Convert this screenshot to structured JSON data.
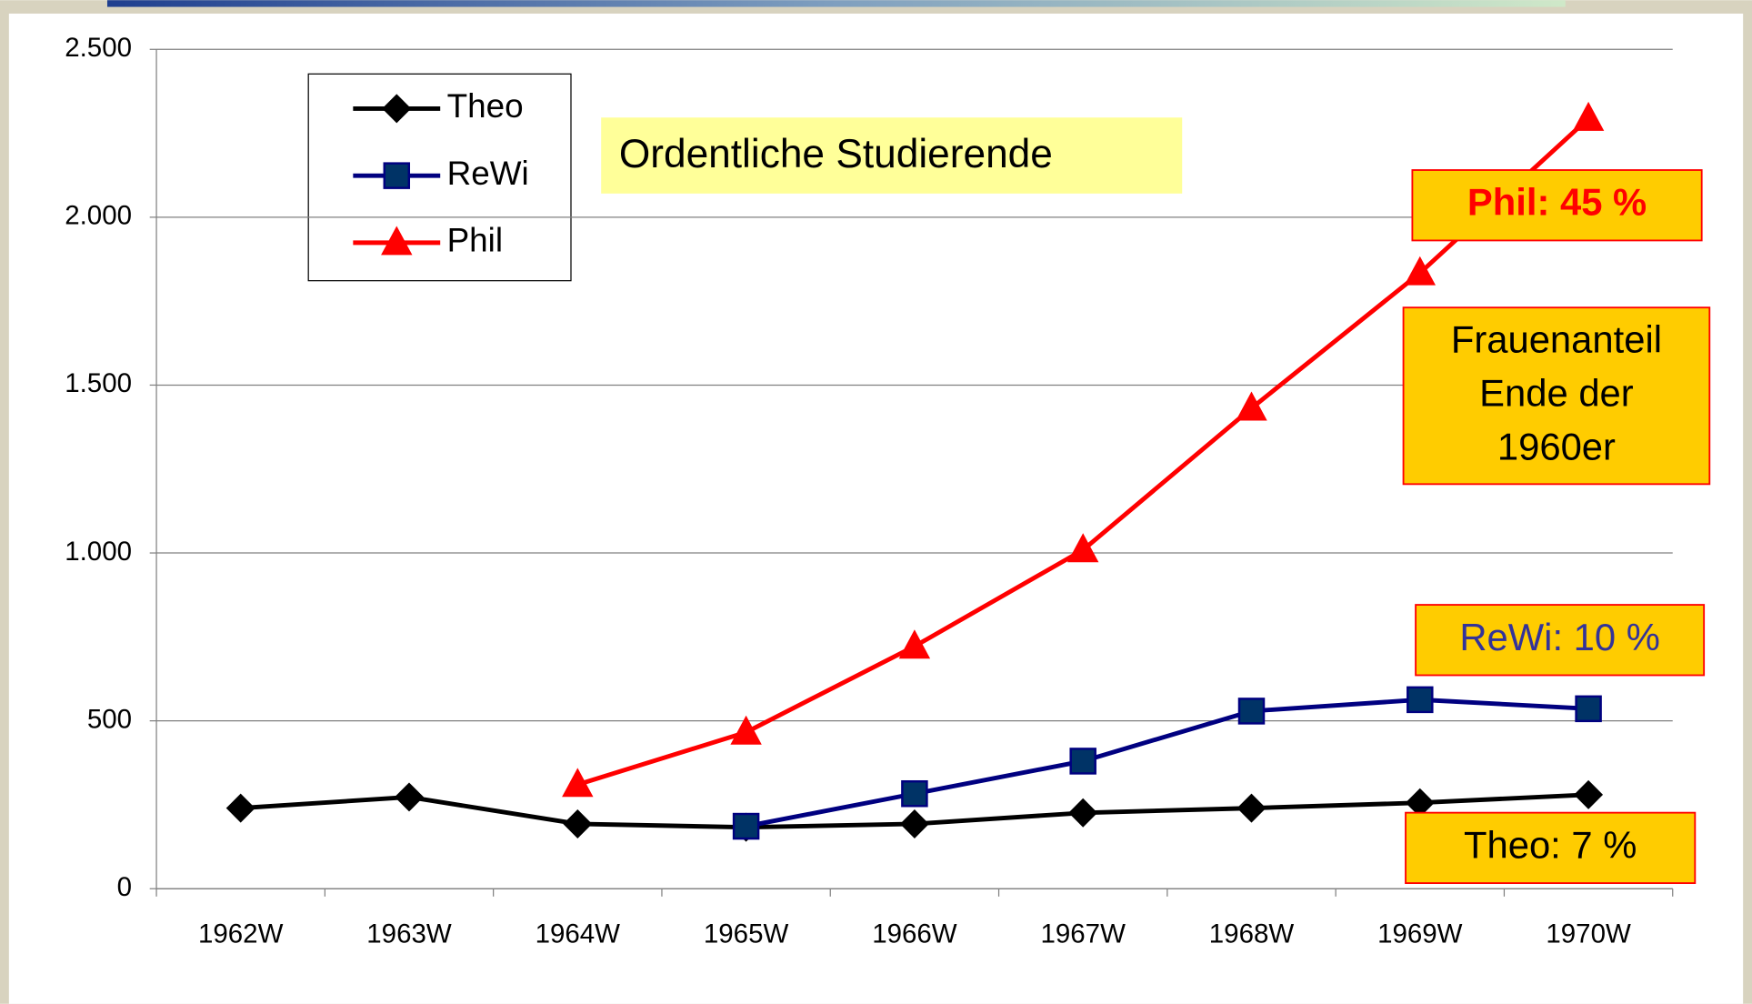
{
  "chart_data": {
    "type": "line",
    "title": "Ordentliche Studierende",
    "categories": [
      "1962W",
      "1963W",
      "1964W",
      "1965W",
      "1966W",
      "1967W",
      "1968W",
      "1969W",
      "1970W"
    ],
    "series": [
      {
        "name": "Theo",
        "color": "#000000",
        "marker": "diamond",
        "values": [
          240,
          273,
          193,
          183,
          193,
          226,
          240,
          256,
          280
        ]
      },
      {
        "name": "ReWi",
        "color": "#000080",
        "marker": "square",
        "values": [
          null,
          null,
          null,
          186,
          283,
          380,
          529,
          563,
          536
        ]
      },
      {
        "name": "Phil",
        "color": "#ff0000",
        "marker": "triangle",
        "values": [
          null,
          null,
          310,
          466,
          722,
          1009,
          1431,
          1834,
          2294
        ]
      }
    ],
    "ylim": [
      0,
      2500
    ],
    "yticks": [
      0,
      500,
      {
        "value": 1000,
        "label": "1.000"
      },
      {
        "value": 1500,
        "label": "1.500"
      },
      {
        "value": 2000,
        "label": "2.000"
      },
      {
        "value": 2500,
        "label": "2.500"
      }
    ],
    "grid": true,
    "annotations": [
      "Phil: 45 %",
      [
        "Frauenanteil",
        "Ende der",
        "1960er"
      ],
      "ReWi: 10 %",
      "Theo: 7 %"
    ]
  }
}
